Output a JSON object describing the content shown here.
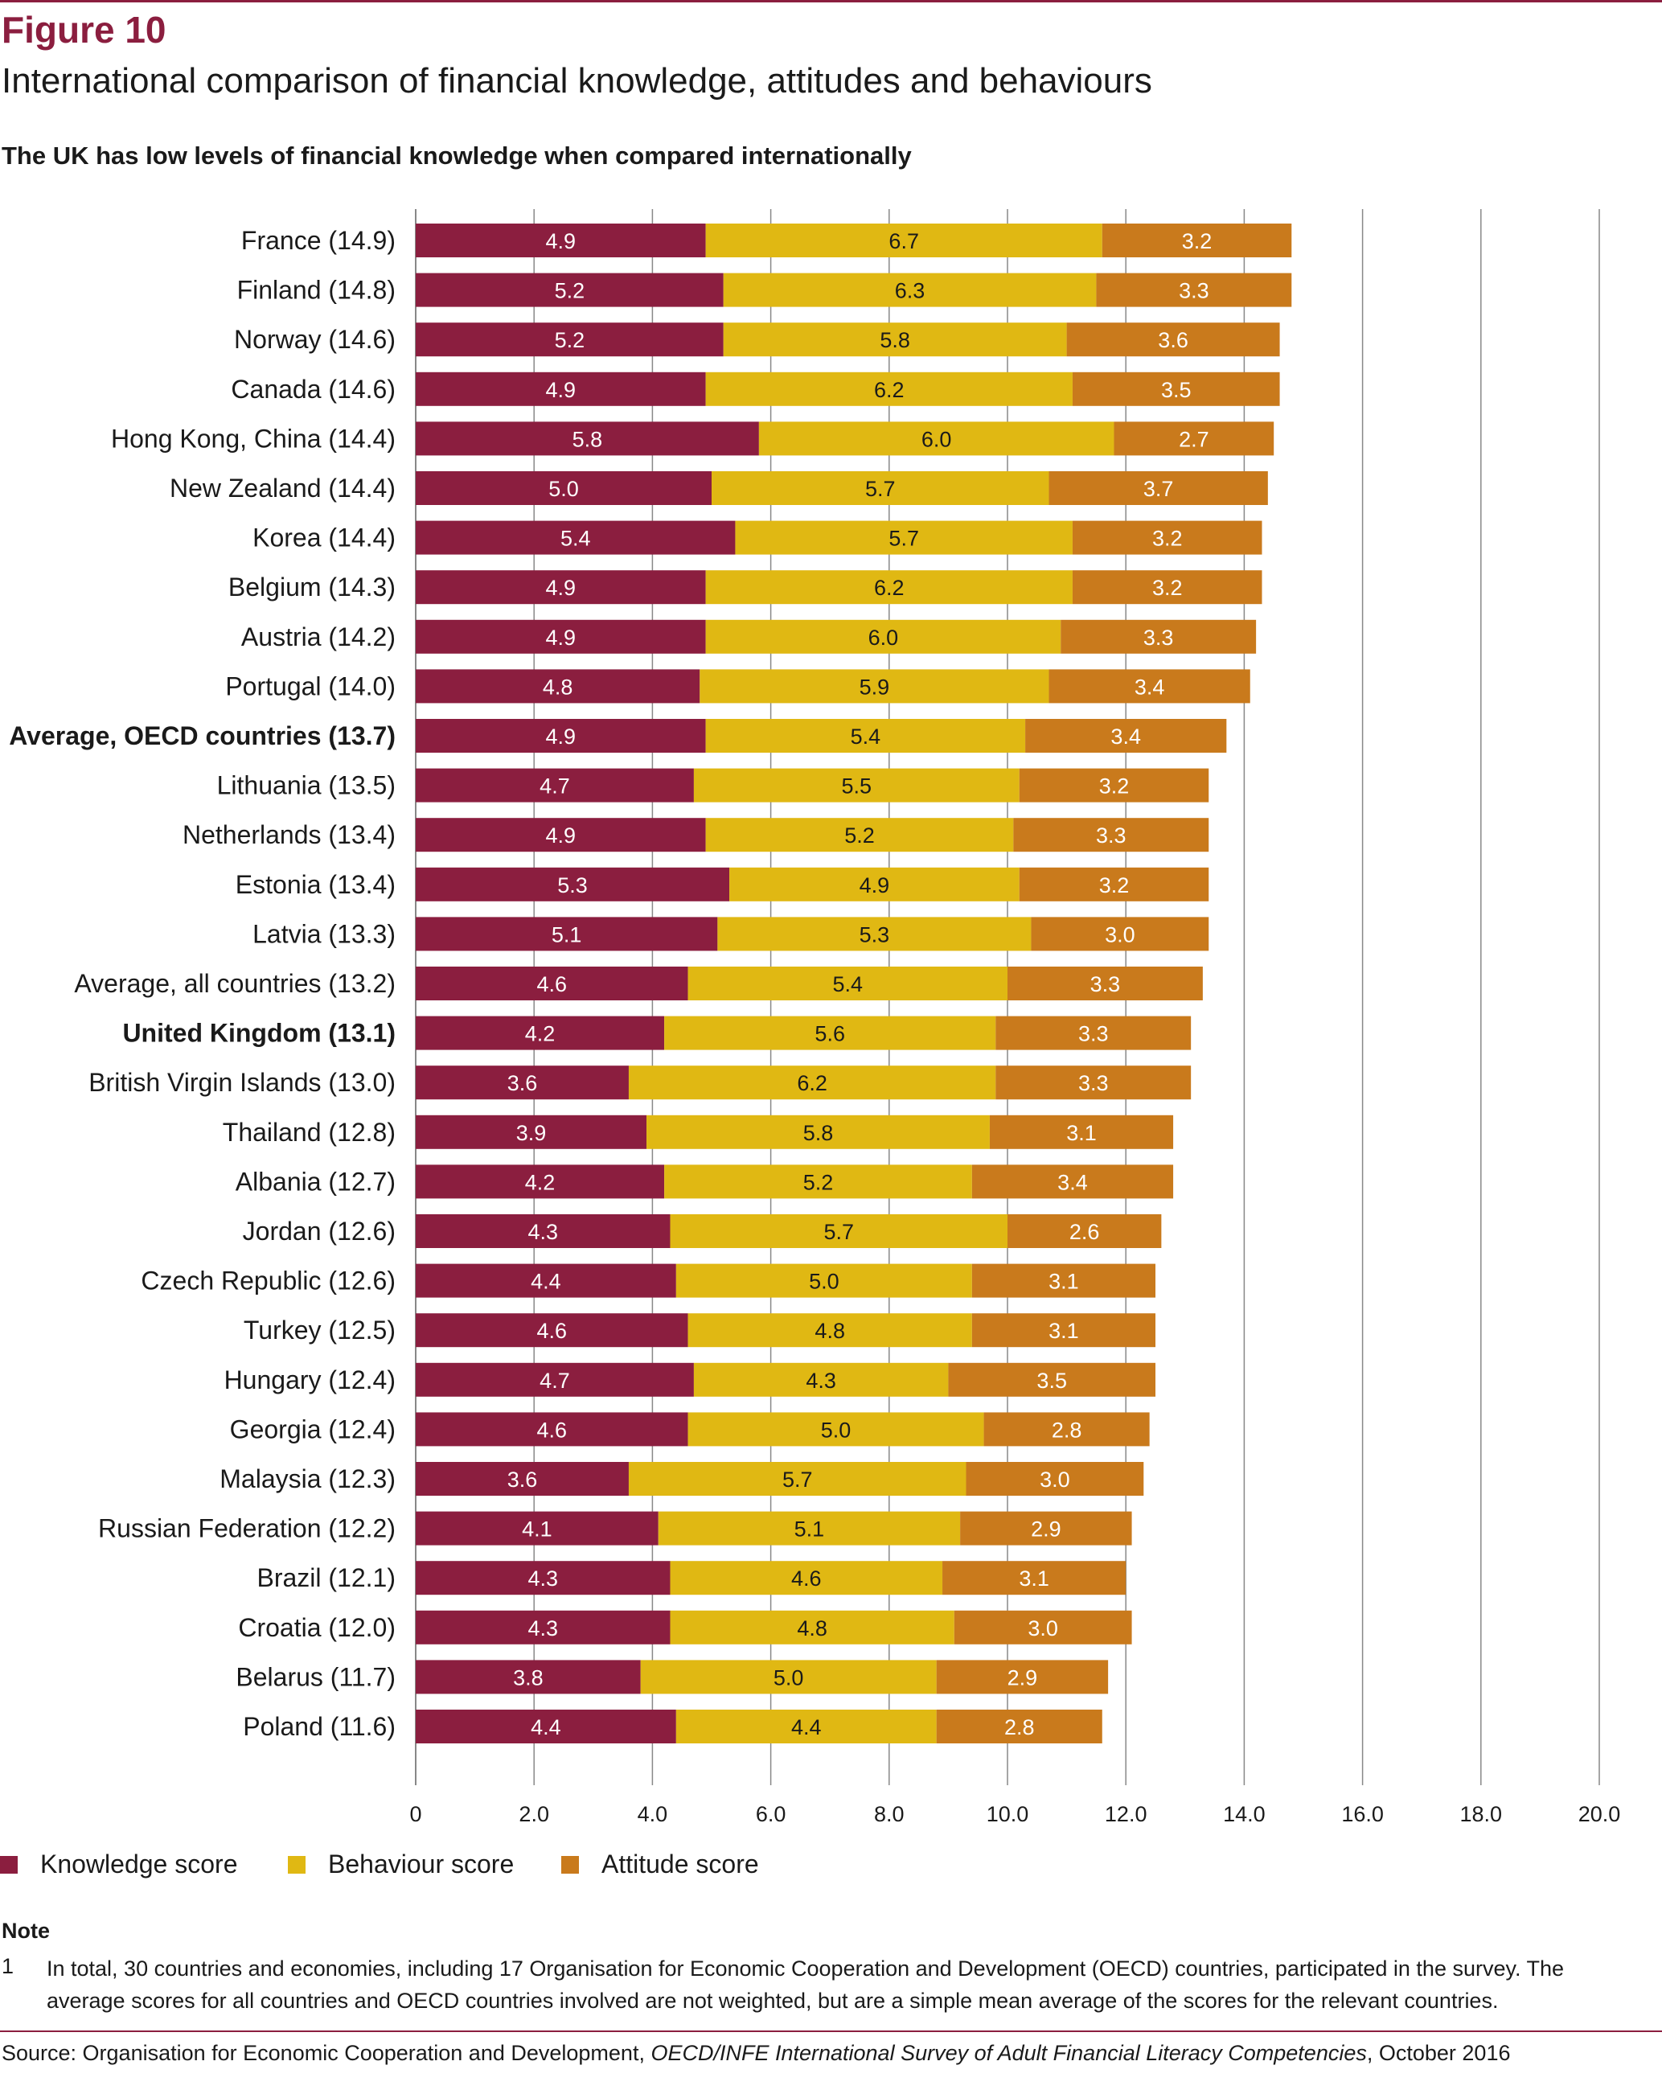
{
  "header": {
    "figure_label": "Figure 10",
    "title": "International comparison of financial knowledge, attitudes and behaviours",
    "subtitle": "The UK has low levels of financial knowledge when compared internationally"
  },
  "colors": {
    "brand": "#8b1e3f",
    "knowledge": "#8b1e3f",
    "behaviour": "#e0b813",
    "attitude": "#c97a1c",
    "gridline": "#888888"
  },
  "chart_data": {
    "type": "bar",
    "orientation": "horizontal",
    "stacked": true,
    "categories": [
      "France (14.9)",
      "Finland (14.8)",
      "Norway (14.6)",
      "Canada (14.6)",
      "Hong Kong, China (14.4)",
      "New Zealand (14.4)",
      "Korea (14.4)",
      "Belgium (14.3)",
      "Austria (14.2)",
      "Portugal (14.0)",
      "Average, OECD countries (13.7)",
      "Lithuania (13.5)",
      "Netherlands (13.4)",
      "Estonia (13.4)",
      "Latvia (13.3)",
      "Average, all countries (13.2)",
      "United Kingdom (13.1)",
      "British Virgin Islands (13.0)",
      "Thailand (12.8)",
      "Albania (12.7)",
      "Jordan (12.6)",
      "Czech Republic (12.6)",
      "Turkey (12.5)",
      "Hungary (12.4)",
      "Georgia (12.4)",
      "Malaysia (12.3)",
      "Russian Federation (12.2)",
      "Brazil (12.1)",
      "Croatia (12.0)",
      "Belarus (11.7)",
      "Poland (11.6)"
    ],
    "bold_categories": [
      "Average, OECD countries (13.7)",
      "United Kingdom (13.1)"
    ],
    "series": [
      {
        "name": "Knowledge score",
        "values": [
          4.9,
          5.2,
          5.2,
          4.9,
          5.8,
          5.0,
          5.4,
          4.9,
          4.9,
          4.8,
          4.9,
          4.7,
          4.9,
          5.3,
          5.1,
          4.6,
          4.2,
          3.6,
          3.9,
          4.2,
          4.3,
          4.4,
          4.6,
          4.7,
          4.6,
          3.6,
          4.1,
          4.3,
          4.3,
          3.8,
          4.4
        ]
      },
      {
        "name": "Behaviour score",
        "values": [
          6.7,
          6.3,
          5.8,
          6.2,
          6.0,
          5.7,
          5.7,
          6.2,
          6.0,
          5.9,
          5.4,
          5.5,
          5.2,
          4.9,
          5.3,
          5.4,
          5.6,
          6.2,
          5.8,
          5.2,
          5.7,
          5.0,
          4.8,
          4.3,
          5.0,
          5.7,
          5.1,
          4.6,
          4.8,
          5.0,
          4.4
        ]
      },
      {
        "name": "Attitude score",
        "values": [
          3.2,
          3.3,
          3.6,
          3.5,
          2.7,
          3.7,
          3.2,
          3.2,
          3.3,
          3.4,
          3.4,
          3.2,
          3.3,
          3.2,
          3.0,
          3.3,
          3.3,
          3.3,
          3.1,
          3.4,
          2.6,
          3.1,
          3.1,
          3.5,
          2.8,
          3.0,
          2.9,
          3.1,
          3.0,
          2.9,
          2.8
        ]
      }
    ],
    "xlim": [
      0,
      20
    ],
    "xticks": [
      "0",
      "2.0",
      "4.0",
      "6.0",
      "8.0",
      "10.0",
      "12.0",
      "14.0",
      "16.0",
      "18.0",
      "20.0"
    ],
    "grid": true,
    "legend_position": "bottom-left"
  },
  "legend": {
    "items": [
      "Knowledge score",
      "Behaviour score",
      "Attitude score"
    ]
  },
  "note": {
    "heading": "Note",
    "number": "1",
    "text": "In total, 30 countries and economies, including 17 Organisation for Economic Cooperation and Development (OECD) countries, participated in the survey. The average scores for all countries and OECD countries involved are not weighted, but are a simple mean average of the scores for the relevant countries."
  },
  "source": {
    "prefix": "Source: Organisation for Economic Cooperation and Development, ",
    "italic": "OECD/INFE International Survey of Adult Financial Literacy Competencies",
    "suffix": ", October 2016"
  }
}
